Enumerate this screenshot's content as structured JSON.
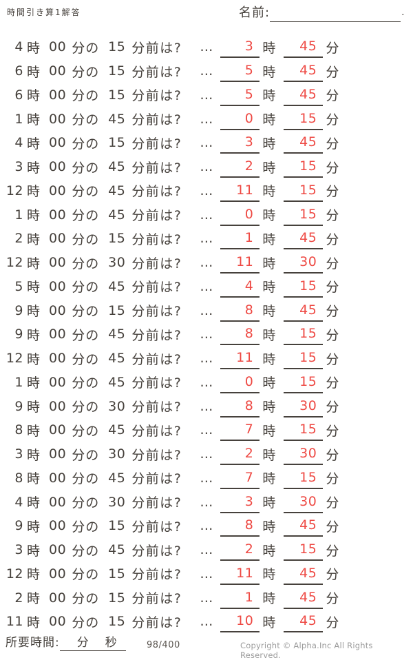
{
  "title": "時間引き算1解答",
  "name": {
    "label": "名前:",
    "dot": "."
  },
  "units": {
    "ji": "時",
    "zero_min": "00",
    "fun_no": "分の",
    "mae_wa": "分前は?",
    "dots": "…",
    "fun": "分"
  },
  "problems": [
    {
      "q_hour": "4",
      "q_sub": "15",
      "a_hour": "3",
      "a_min": "45"
    },
    {
      "q_hour": "6",
      "q_sub": "15",
      "a_hour": "5",
      "a_min": "45"
    },
    {
      "q_hour": "6",
      "q_sub": "15",
      "a_hour": "5",
      "a_min": "45"
    },
    {
      "q_hour": "1",
      "q_sub": "45",
      "a_hour": "0",
      "a_min": "15"
    },
    {
      "q_hour": "4",
      "q_sub": "15",
      "a_hour": "3",
      "a_min": "45"
    },
    {
      "q_hour": "3",
      "q_sub": "45",
      "a_hour": "2",
      "a_min": "15"
    },
    {
      "q_hour": "12",
      "q_sub": "45",
      "a_hour": "11",
      "a_min": "15"
    },
    {
      "q_hour": "1",
      "q_sub": "45",
      "a_hour": "0",
      "a_min": "15"
    },
    {
      "q_hour": "2",
      "q_sub": "15",
      "a_hour": "1",
      "a_min": "45"
    },
    {
      "q_hour": "12",
      "q_sub": "30",
      "a_hour": "11",
      "a_min": "30"
    },
    {
      "q_hour": "5",
      "q_sub": "45",
      "a_hour": "4",
      "a_min": "15"
    },
    {
      "q_hour": "9",
      "q_sub": "15",
      "a_hour": "8",
      "a_min": "45"
    },
    {
      "q_hour": "9",
      "q_sub": "45",
      "a_hour": "8",
      "a_min": "15"
    },
    {
      "q_hour": "12",
      "q_sub": "45",
      "a_hour": "11",
      "a_min": "15"
    },
    {
      "q_hour": "1",
      "q_sub": "45",
      "a_hour": "0",
      "a_min": "15"
    },
    {
      "q_hour": "9",
      "q_sub": "30",
      "a_hour": "8",
      "a_min": "30"
    },
    {
      "q_hour": "8",
      "q_sub": "45",
      "a_hour": "7",
      "a_min": "15"
    },
    {
      "q_hour": "3",
      "q_sub": "30",
      "a_hour": "2",
      "a_min": "30"
    },
    {
      "q_hour": "8",
      "q_sub": "45",
      "a_hour": "7",
      "a_min": "15"
    },
    {
      "q_hour": "4",
      "q_sub": "30",
      "a_hour": "3",
      "a_min": "30"
    },
    {
      "q_hour": "9",
      "q_sub": "15",
      "a_hour": "8",
      "a_min": "45"
    },
    {
      "q_hour": "3",
      "q_sub": "45",
      "a_hour": "2",
      "a_min": "15"
    },
    {
      "q_hour": "12",
      "q_sub": "15",
      "a_hour": "11",
      "a_min": "45"
    },
    {
      "q_hour": "2",
      "q_sub": "15",
      "a_hour": "1",
      "a_min": "45"
    },
    {
      "q_hour": "11",
      "q_sub": "15",
      "a_hour": "10",
      "a_min": "45"
    }
  ],
  "footer": {
    "time_label": "所要時間:",
    "min": "分",
    "sec": "秒",
    "counter": "98/400",
    "copyright": "Copyright ©  Alpha.Inc All Rights Reserved."
  },
  "colors": {
    "ink": "#46413c",
    "answer_red": "#ee4a44",
    "muted_gray": "#9b9b9b"
  }
}
